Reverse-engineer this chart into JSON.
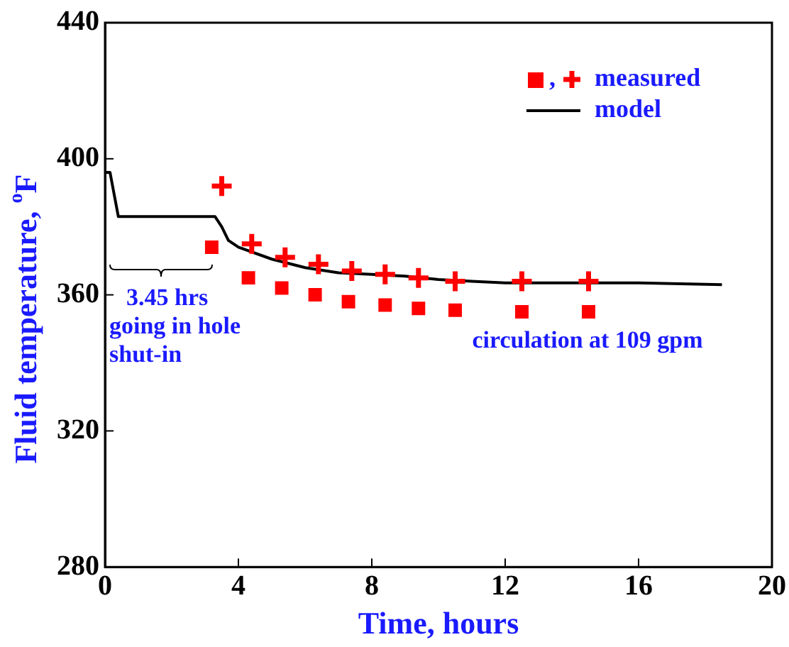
{
  "chart_data": {
    "type": "scatter",
    "xlabel": "Time, hours",
    "ylabel": "Fluid temperature, $^{o}$F",
    "xlim": [
      0,
      20
    ],
    "xticks": [
      0,
      4,
      8,
      12,
      16,
      20
    ],
    "ylim": [
      280,
      440
    ],
    "yticks": [
      280,
      320,
      360,
      400,
      440
    ],
    "grid": false,
    "legend": "top right",
    "series": [
      {
        "marker": "square",
        "color": "#ff0000",
        "x": [
          3.2,
          4.3,
          5.3,
          6.3,
          7.3,
          8.4,
          9.4,
          10.5,
          12.5,
          14.5
        ],
        "values": [
          374,
          365,
          362,
          360,
          358,
          357,
          356,
          355.5,
          355,
          355
        ]
      },
      {
        "name": "measured",
        "marker": "cross",
        "color": "#ff0000",
        "x": [
          3.5,
          4.4,
          5.4,
          6.4,
          7.4,
          8.4,
          9.4,
          10.5,
          12.5,
          14.5
        ],
        "values": [
          392,
          375,
          371,
          369,
          367,
          366,
          365,
          364,
          364,
          364
        ]
      },
      {
        "name": "model",
        "type": "line",
        "marker": "none",
        "line_style": "solid",
        "color": "#000000",
        "x": [
          0,
          0.15,
          0.4,
          3.3,
          3.5,
          3.7,
          4,
          5,
          6,
          7,
          8,
          9,
          10,
          11,
          12,
          14,
          16,
          18.5
        ],
        "values": [
          396,
          396,
          383,
          383,
          380,
          376,
          374,
          370.5,
          368,
          366.5,
          366,
          365.5,
          364.5,
          364,
          363.5,
          363.5,
          363.5,
          363
        ]
      }
    ],
    "annotations": [
      "3.45 hrs\ngoing in hole\nshut-in",
      "circulation at 109 gpm",
      ","
    ]
  }
}
